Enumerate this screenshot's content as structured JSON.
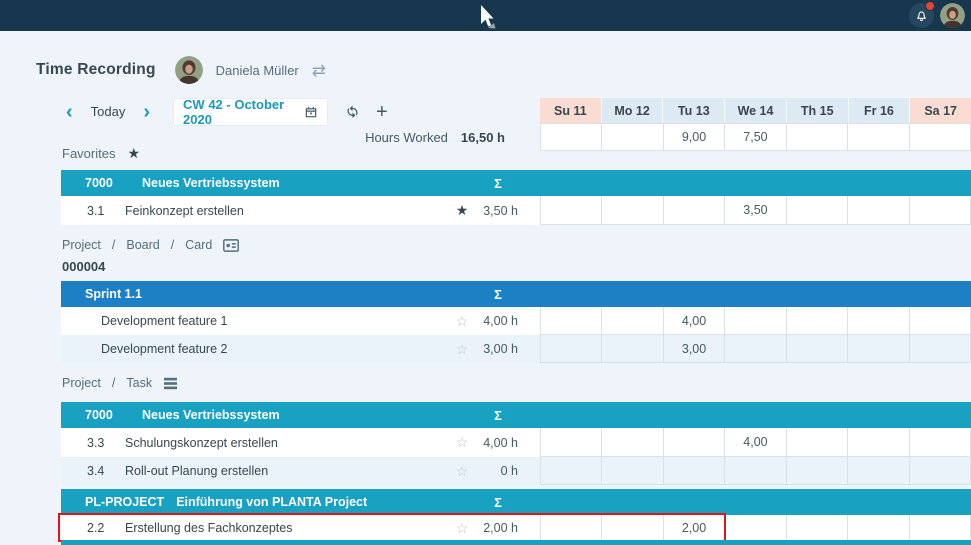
{
  "colors": {
    "topbar": "#17374f",
    "accent_teal": "#19a1c2",
    "accent_blue": "#1d80c4",
    "weekend_header_bg": "#fbdcd2",
    "weekday_header_bg": "#dceaf3",
    "highlight_red": "#e01515",
    "notification_dot": "#e8432c"
  },
  "icons": {
    "star_filled": "★",
    "star_outline": "☆",
    "swap": "⇄",
    "plus": "+",
    "chevron_left": "‹",
    "chevron_right": "›",
    "slash": "/"
  },
  "header": {
    "title": "Time Recording",
    "user_name": "Daniela Müller"
  },
  "toolbar": {
    "today": "Today",
    "period": "CW 42 - October 2020"
  },
  "summary": {
    "label": "Hours Worked",
    "value": "16,50 h"
  },
  "week": {
    "days": [
      {
        "label": "Su 11",
        "weekend": true
      },
      {
        "label": "Mo 12",
        "weekend": false
      },
      {
        "label": "Tu 13",
        "weekend": false
      },
      {
        "label": "We 14",
        "weekend": false
      },
      {
        "label": "Th 15",
        "weekend": false
      },
      {
        "label": "Fr 16",
        "weekend": false
      },
      {
        "label": "Sa 17",
        "weekend": true
      }
    ],
    "totals": [
      "",
      "",
      "9,00",
      "7,50",
      "",
      "",
      ""
    ]
  },
  "favorites": {
    "label": "Favorites",
    "group": {
      "code": "7000",
      "name": "Neues Vertriebssystem",
      "sum": "Σ"
    },
    "rows": [
      {
        "code": "3.1",
        "name": "Feinkonzept erstellen",
        "favorite": true,
        "hours": "3,50 h",
        "days": [
          "",
          "",
          "",
          "3,50",
          "",
          "",
          ""
        ]
      }
    ]
  },
  "board": {
    "breadcrumb": [
      "Project",
      "Board",
      "Card"
    ],
    "project_code": "000004",
    "group": {
      "name": "Sprint 1.1",
      "sum": "Σ"
    },
    "rows": [
      {
        "name": "Development feature 1",
        "favorite": false,
        "hours": "4,00 h",
        "days": [
          "",
          "",
          "4,00",
          "",
          "",
          "",
          ""
        ]
      },
      {
        "name": "Development feature 2",
        "favorite": false,
        "hours": "3,00 h",
        "days": [
          "",
          "",
          "3,00",
          "",
          "",
          "",
          ""
        ]
      }
    ]
  },
  "tasks": {
    "breadcrumb": [
      "Project",
      "Task"
    ],
    "groups": [
      {
        "code": "7000",
        "name": "Neues Vertriebssystem",
        "sum": "Σ",
        "rows": [
          {
            "code": "3.3",
            "name": "Schulungskonzept erstellen",
            "favorite": false,
            "hours": "4,00 h",
            "days": [
              "",
              "",
              "",
              "4,00",
              "",
              "",
              ""
            ]
          },
          {
            "code": "3.4",
            "name": "Roll-out Planung erstellen",
            "favorite": false,
            "hours": "0 h",
            "days": [
              "",
              "",
              "",
              "",
              "",
              "",
              ""
            ]
          }
        ]
      },
      {
        "code": "PL-PROJECT",
        "name": "Einführung von PLANTA Project",
        "sum": "Σ",
        "rows": [
          {
            "code": "2.2",
            "name": "Erstellung des Fachkonzeptes",
            "favorite": false,
            "hours": "2,00 h",
            "highlighted": true,
            "days": [
              "",
              "",
              "2,00",
              "",
              "",
              "",
              ""
            ]
          }
        ]
      }
    ]
  }
}
